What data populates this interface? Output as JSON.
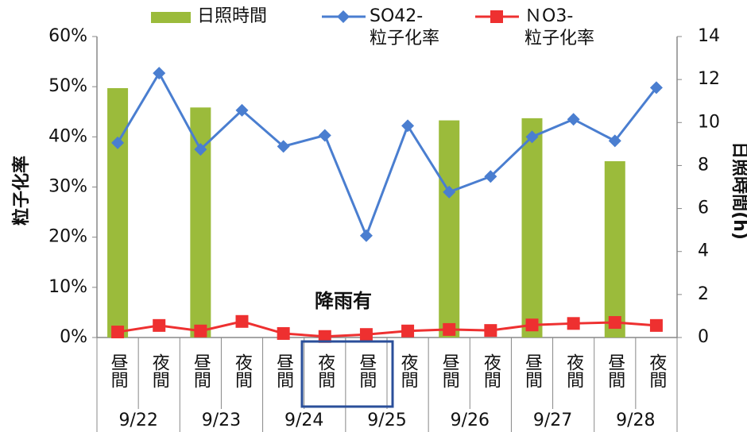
{
  "chart_data": {
    "type": "bar",
    "categories": [
      "昼間",
      "夜間",
      "昼間",
      "夜間",
      "昼間",
      "夜間",
      "昼間",
      "夜間",
      "昼間",
      "夜間",
      "昼間",
      "夜間",
      "昼間",
      "夜間"
    ],
    "date_groups": [
      "9/22",
      "9/23",
      "9/24",
      "9/25",
      "9/26",
      "9/27",
      "9/28"
    ],
    "ylabel": "粒子化率",
    "y2label": "日照時間(h)",
    "ylim": [
      0,
      60
    ],
    "yticks": [
      {
        "value": 0,
        "label": "0%"
      },
      {
        "value": 10,
        "label": "10%"
      },
      {
        "value": 20,
        "label": "20%"
      },
      {
        "value": 30,
        "label": "30%"
      },
      {
        "value": 40,
        "label": "40%"
      },
      {
        "value": 50,
        "label": "50%"
      },
      {
        "value": 60,
        "label": "60%"
      }
    ],
    "y2lim": [
      0,
      14
    ],
    "y2ticks": [
      0,
      2,
      4,
      6,
      8,
      10,
      12,
      14
    ],
    "annotation": "降雨有",
    "series": [
      {
        "name": "日照時間",
        "type": "bar",
        "axis": "y2",
        "color": "#9bbb3b",
        "values": [
          11.6,
          null,
          10.7,
          null,
          null,
          null,
          null,
          null,
          10.1,
          null,
          10.2,
          null,
          8.2,
          null
        ]
      },
      {
        "name": "SO42-\n粒子化率",
        "type": "line",
        "marker": "diamond",
        "color": "#4a7ed0",
        "values": [
          38.8,
          52.7,
          37.5,
          45.3,
          38.1,
          40.3,
          20.3,
          42.2,
          29.0,
          32.1,
          40.0,
          43.5,
          39.2,
          49.8
        ]
      },
      {
        "name": "ＮO3-\n粒子化率",
        "type": "line",
        "marker": "square",
        "color": "#ee3030",
        "values": [
          1.1,
          2.4,
          1.3,
          3.2,
          0.8,
          0.2,
          0.6,
          1.3,
          1.6,
          1.4,
          2.5,
          2.8,
          3.0,
          2.4
        ]
      }
    ]
  }
}
